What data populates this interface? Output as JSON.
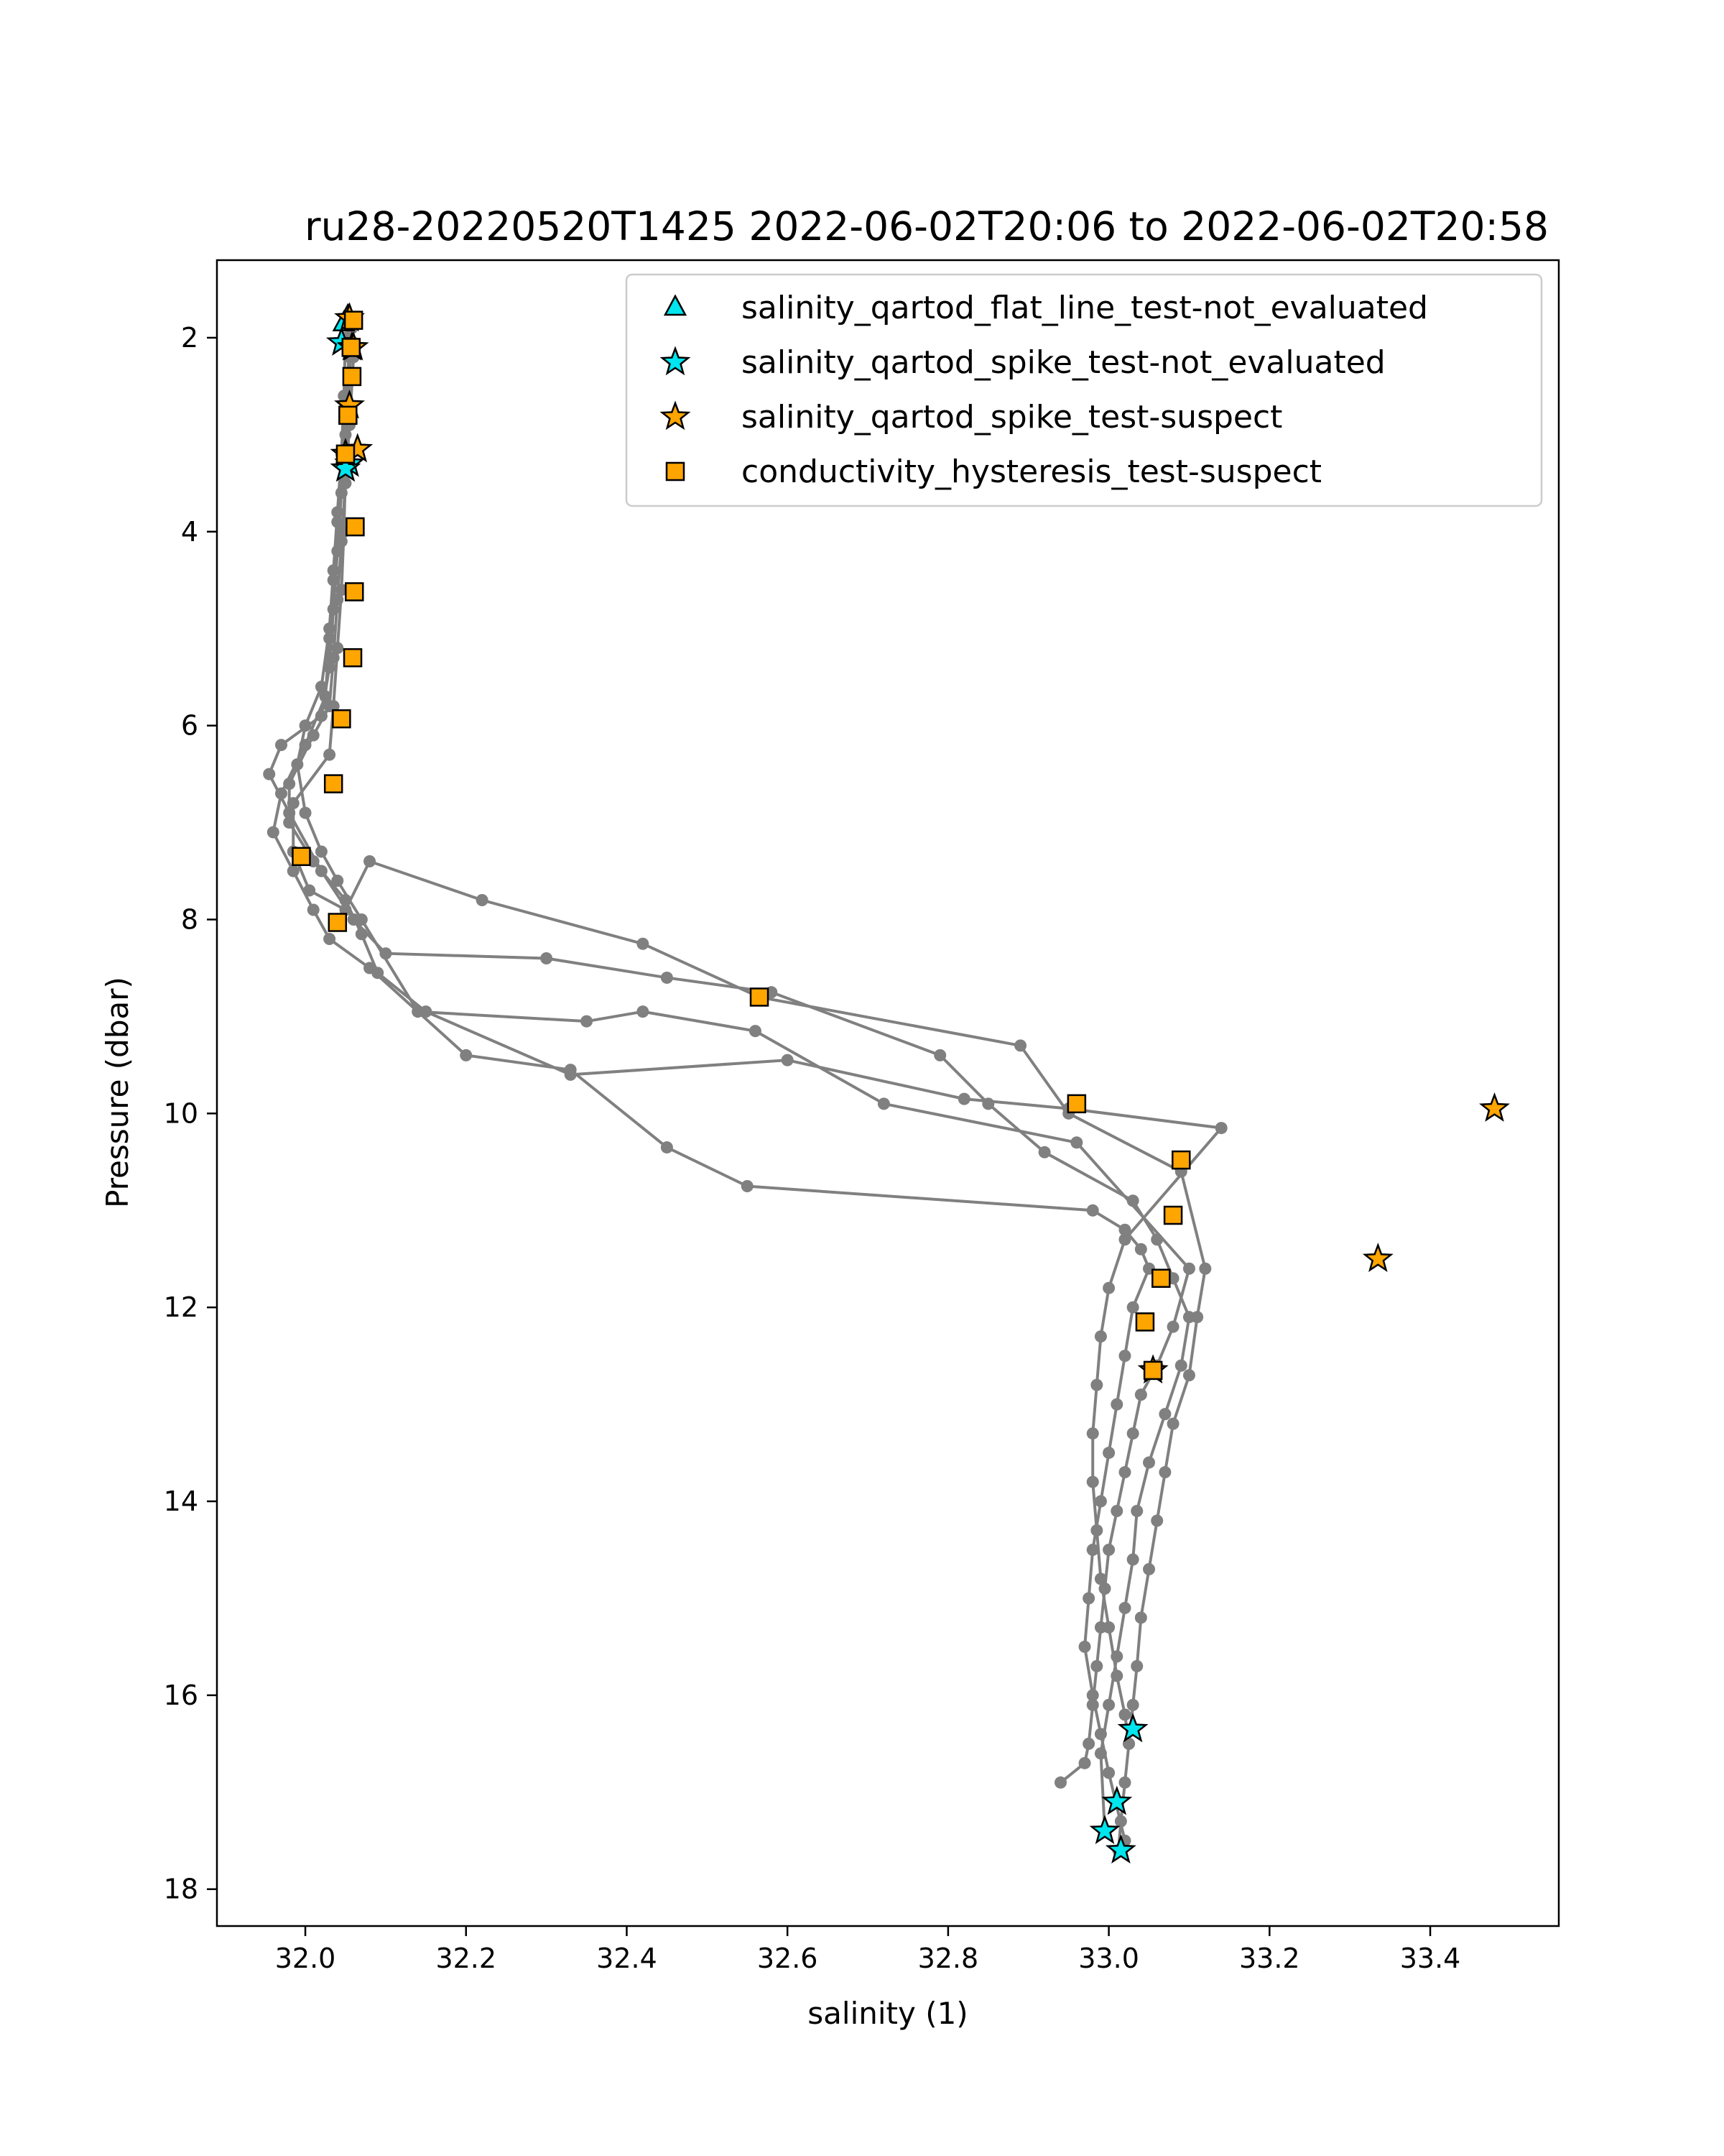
{
  "chart_data": {
    "type": "scatter",
    "title": "ru28-20220520T1425 2022-06-02T20:06 to 2022-06-02T20:58",
    "xlabel": "salinity (1)",
    "ylabel": "Pressure (dbar)",
    "xlim": [
      31.89,
      33.56
    ],
    "ylim": [
      18.38,
      1.2
    ],
    "y_inverted": true,
    "grid": false,
    "x_ticks": [
      32.0,
      32.2,
      32.4,
      32.6,
      32.8,
      33.0,
      33.2,
      33.4
    ],
    "x_tick_labels": [
      "32.0",
      "32.2",
      "32.4",
      "32.6",
      "32.8",
      "33.0",
      "33.2",
      "33.4"
    ],
    "y_ticks": [
      2,
      4,
      6,
      8,
      10,
      12,
      14,
      16,
      18
    ],
    "y_tick_labels": [
      "2",
      "4",
      "6",
      "8",
      "10",
      "12",
      "14",
      "16",
      "18"
    ],
    "legend_position": "top-right",
    "colors": {
      "profile": "#808080",
      "cyan": "#00e5ee",
      "orange": "#ffa500",
      "edge": "#000000"
    },
    "profiles": [
      {
        "salinity": [
          32.05,
          32.055,
          32.052,
          32.05,
          32.048,
          32.045,
          32.04,
          32.035,
          32.03,
          31.985,
          31.985,
          32.005,
          32.05,
          32.08,
          32.22,
          32.42,
          32.565,
          32.89,
          32.95,
          33.09,
          33.12,
          33.11,
          33.1,
          33.08,
          33.07,
          33.06,
          33.05,
          33.04,
          33.035,
          33.03,
          33.025,
          33.02,
          33.015,
          33.012
        ],
        "pressure": [
          1.8,
          2.2,
          2.8,
          3.4,
          4.0,
          4.6,
          5.2,
          5.8,
          6.3,
          6.8,
          7.3,
          7.7,
          7.9,
          7.4,
          7.8,
          8.25,
          8.8,
          9.3,
          10.0,
          10.6,
          11.6,
          12.1,
          12.7,
          13.2,
          13.7,
          14.2,
          14.7,
          15.2,
          15.7,
          16.1,
          16.5,
          16.9,
          17.3,
          17.6
        ]
      },
      {
        "salinity": [
          32.058,
          32.055,
          32.05,
          32.045,
          32.04,
          32.035,
          32.03,
          32.02,
          31.97,
          31.955,
          31.98,
          32.02,
          32.06,
          32.1,
          32.3,
          32.45,
          32.58,
          32.79,
          32.85,
          32.92,
          33.03,
          33.06,
          33.08,
          33.1,
          33.09,
          33.07,
          33.05,
          33.035,
          33.03,
          33.02,
          33.01,
          33.0,
          32.99,
          32.995
        ],
        "pressure": [
          1.9,
          2.4,
          3.0,
          3.6,
          4.2,
          4.8,
          5.4,
          5.9,
          6.2,
          6.5,
          6.9,
          7.5,
          8.0,
          8.35,
          8.4,
          8.6,
          8.75,
          9.4,
          9.9,
          10.4,
          10.9,
          11.3,
          11.7,
          12.1,
          12.6,
          13.1,
          13.6,
          14.1,
          14.6,
          15.1,
          15.6,
          16.1,
          16.6,
          17.4
        ]
      },
      {
        "salinity": [
          32.05,
          32.048,
          32.045,
          32.04,
          32.035,
          32.03,
          32.02,
          32.0,
          31.99,
          32.0,
          32.02,
          32.04,
          32.07,
          32.14,
          32.35,
          32.42,
          32.56,
          32.72,
          32.96,
          33.1,
          33.08,
          33.06,
          33.04,
          33.03,
          33.02,
          33.01,
          33.0,
          32.995,
          32.99,
          32.985,
          32.98,
          32.975,
          32.97,
          32.94
        ],
        "pressure": [
          2.0,
          2.6,
          3.2,
          3.8,
          4.4,
          5.0,
          5.6,
          6.0,
          6.4,
          6.9,
          7.3,
          7.6,
          8.0,
          8.95,
          9.05,
          8.95,
          9.15,
          9.9,
          10.3,
          11.6,
          12.2,
          12.6,
          12.9,
          13.3,
          13.7,
          14.1,
          14.5,
          14.9,
          15.3,
          15.7,
          16.1,
          16.5,
          16.7,
          16.9
        ]
      },
      {
        "salinity": [
          32.055,
          32.05,
          32.045,
          32.04,
          32.035,
          32.03,
          32.025,
          32.0,
          31.97,
          31.96,
          31.985,
          32.01,
          32.03,
          32.08,
          32.2,
          32.33,
          32.45,
          32.55,
          32.98,
          33.02,
          33.04,
          33.05,
          33.03,
          33.02,
          33.01,
          33.0,
          32.99,
          32.98,
          32.975,
          32.97,
          32.98,
          32.99,
          33.0,
          33.02
        ],
        "pressure": [
          2.1,
          2.7,
          3.3,
          3.9,
          4.5,
          5.1,
          5.7,
          6.2,
          6.7,
          7.1,
          7.5,
          7.9,
          8.2,
          8.5,
          9.4,
          9.55,
          10.35,
          10.75,
          11.0,
          11.2,
          11.4,
          11.6,
          12.0,
          12.5,
          13.0,
          13.5,
          14.0,
          14.5,
          15.0,
          15.5,
          16.0,
          16.4,
          16.8,
          17.5
        ]
      },
      {
        "salinity": [
          32.06,
          32.055,
          32.05,
          32.045,
          32.04,
          32.035,
          32.03,
          32.01,
          31.98,
          31.98,
          32.01,
          32.05,
          32.07,
          32.09,
          32.15,
          32.33,
          32.6,
          32.82,
          32.95,
          33.14,
          33.02,
          33.0,
          32.99,
          32.985,
          32.98,
          32.98,
          32.985,
          32.99,
          33.0,
          33.01,
          33.02,
          33.025
        ],
        "pressure": [
          2.2,
          2.9,
          3.5,
          4.1,
          4.7,
          5.3,
          5.8,
          6.1,
          6.6,
          7.0,
          7.4,
          7.8,
          8.15,
          8.55,
          8.95,
          9.6,
          9.45,
          9.85,
          9.95,
          10.15,
          11.3,
          11.8,
          12.3,
          12.8,
          13.3,
          13.8,
          14.3,
          14.8,
          15.3,
          15.8,
          16.2,
          16.5
        ]
      }
    ],
    "markers": [
      {
        "label": "salinity_qartod_flat_line_test-not_evaluated",
        "shape": "triangle",
        "color": "#00e5ee",
        "points": [
          {
            "x": 32.053,
            "y": 1.78
          },
          {
            "x": 32.048,
            "y": 1.85
          }
        ]
      },
      {
        "label": "salinity_qartod_spike_test-not_evaluated",
        "shape": "star",
        "color": "#00e5ee",
        "points": [
          {
            "x": 32.045,
            "y": 2.05
          },
          {
            "x": 32.058,
            "y": 2.1
          },
          {
            "x": 32.055,
            "y": 3.3
          },
          {
            "x": 32.05,
            "y": 3.35
          },
          {
            "x": 33.03,
            "y": 16.35
          },
          {
            "x": 33.01,
            "y": 17.1
          },
          {
            "x": 32.995,
            "y": 17.4
          },
          {
            "x": 33.015,
            "y": 17.6
          }
        ]
      },
      {
        "label": "salinity_qartod_spike_test-suspect",
        "shape": "star",
        "color": "#ffa500",
        "points": [
          {
            "x": 32.055,
            "y": 1.8
          },
          {
            "x": 32.06,
            "y": 2.1
          },
          {
            "x": 32.055,
            "y": 2.7
          },
          {
            "x": 32.05,
            "y": 3.2
          },
          {
            "x": 32.065,
            "y": 3.15
          },
          {
            "x": 33.48,
            "y": 9.95
          },
          {
            "x": 33.335,
            "y": 11.5
          },
          {
            "x": 33.055,
            "y": 12.65
          }
        ]
      },
      {
        "label": "conductivity_hysteresis_test-suspect",
        "shape": "square",
        "color": "#ffa500",
        "points": [
          {
            "x": 32.06,
            "y": 1.82
          },
          {
            "x": 32.057,
            "y": 2.1
          },
          {
            "x": 32.058,
            "y": 2.4
          },
          {
            "x": 32.053,
            "y": 2.8
          },
          {
            "x": 32.05,
            "y": 3.2
          },
          {
            "x": 32.062,
            "y": 3.95
          },
          {
            "x": 32.061,
            "y": 4.62
          },
          {
            "x": 32.059,
            "y": 5.3
          },
          {
            "x": 32.045,
            "y": 5.93
          },
          {
            "x": 32.035,
            "y": 6.6
          },
          {
            "x": 31.995,
            "y": 7.35
          },
          {
            "x": 32.04,
            "y": 8.03
          },
          {
            "x": 32.565,
            "y": 8.8
          },
          {
            "x": 32.96,
            "y": 9.9
          },
          {
            "x": 33.09,
            "y": 10.48
          },
          {
            "x": 33.08,
            "y": 11.05
          },
          {
            "x": 33.065,
            "y": 11.7
          },
          {
            "x": 33.045,
            "y": 12.15
          },
          {
            "x": 33.055,
            "y": 12.65
          }
        ]
      }
    ]
  }
}
